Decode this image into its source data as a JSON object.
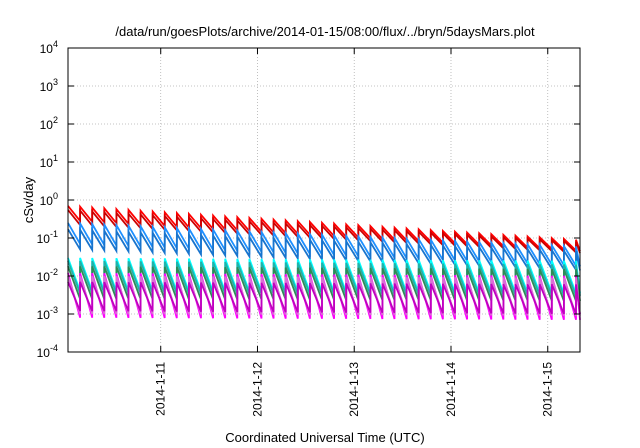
{
  "chart_data": {
    "type": "line",
    "title": "/data/run/goesPlots/archive/2014-01-15/08:00/flux/../bryn/5daysMars.plot",
    "xlabel": "Coordinated Universal Time (UTC)",
    "ylabel": "cSv/day",
    "x_scale": "time",
    "y_scale": "log",
    "grid": true,
    "xlim": [
      "2014-01-10T01:00",
      "2014-01-15T08:00"
    ],
    "ylim": [
      0.0001,
      10000
    ],
    "x_ticks": [
      "2014-1-11",
      "2014-1-12",
      "2014-1-13",
      "2014-1-14",
      "2014-1-15"
    ],
    "x_tick_dates": [
      "2014-01-11",
      "2014-01-12",
      "2014-01-13",
      "2014-01-14",
      "2014-01-15"
    ],
    "y_ticks": [
      {
        "value": 0.0001,
        "base": "10",
        "exp": "-4"
      },
      {
        "value": 0.001,
        "base": "10",
        "exp": "-3"
      },
      {
        "value": 0.01,
        "base": "10",
        "exp": "-2"
      },
      {
        "value": 0.1,
        "base": "10",
        "exp": "-1"
      },
      {
        "value": 1,
        "base": "10",
        "exp": "0"
      },
      {
        "value": 10,
        "base": "10",
        "exp": "1"
      },
      {
        "value": 100,
        "base": "10",
        "exp": "2"
      },
      {
        "value": 1000,
        "base": "10",
        "exp": "3"
      },
      {
        "value": 10000,
        "base": "10",
        "exp": "4"
      }
    ],
    "sawtooth_period_hours": 3,
    "series": [
      {
        "color": "#ff0000",
        "peak_start": 0.7,
        "peak_end": 0.09,
        "trough_start": 0.28,
        "trough_end": 0.045
      },
      {
        "color": "#cc0000",
        "peak_start": 0.55,
        "peak_end": 0.08,
        "trough_start": 0.22,
        "trough_end": 0.04
      },
      {
        "color": "#1e90ff",
        "peak_start": 0.25,
        "peak_end": 0.06,
        "trough_start": 0.07,
        "trough_end": 0.018
      },
      {
        "color": "#1874cd",
        "peak_start": 0.17,
        "peak_end": 0.045,
        "trough_start": 0.05,
        "trough_end": 0.014
      },
      {
        "color": "#00ffff",
        "peak_start": 0.03,
        "peak_end": 0.025,
        "trough_start": 0.004,
        "trough_end": 0.0035
      },
      {
        "color": "#20b2aa",
        "peak_start": 0.025,
        "peak_end": 0.02,
        "trough_start": 0.0035,
        "trough_end": 0.003
      },
      {
        "color": "#2e8b57",
        "peak_start": 0.018,
        "peak_end": 0.015,
        "trough_start": 0.0025,
        "trough_end": 0.0022
      },
      {
        "color": "#ff00ff",
        "peak_start": 0.012,
        "peak_end": 0.01,
        "trough_start": 0.0008,
        "trough_end": 0.0007
      },
      {
        "color": "#da70d6",
        "peak_start": 0.01,
        "peak_end": 0.009,
        "trough_start": 0.001,
        "trough_end": 0.0009
      },
      {
        "color": "#c000c0",
        "peak_start": 0.007,
        "peak_end": 0.006,
        "trough_start": 0.0012,
        "trough_end": 0.001
      }
    ]
  }
}
